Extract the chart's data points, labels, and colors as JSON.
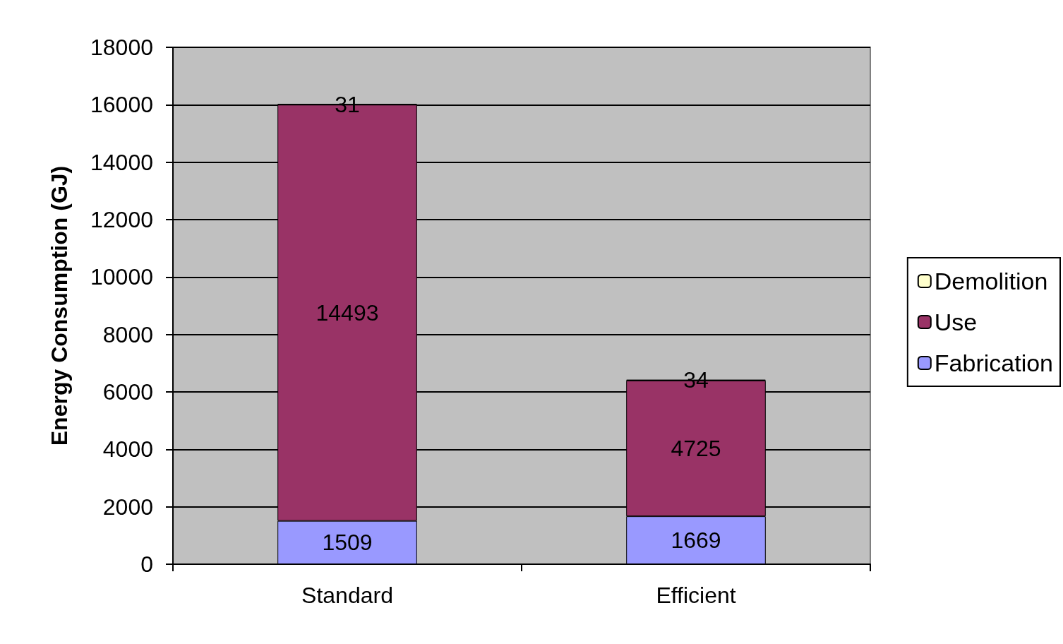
{
  "chart_data": {
    "type": "bar",
    "stacked": true,
    "ylabel": "Energy Consumption (GJ)",
    "categories": [
      "Standard",
      "Efficient"
    ],
    "series": [
      {
        "name": "Fabrication",
        "color": "#9999ff",
        "values": [
          1509,
          1669
        ]
      },
      {
        "name": "Use",
        "color": "#993366",
        "values": [
          14493,
          4725
        ]
      },
      {
        "name": "Demolition",
        "color": "#ffffcc",
        "values": [
          31,
          34
        ]
      }
    ],
    "ylim": [
      0,
      18000
    ],
    "yticks": [
      0,
      2000,
      4000,
      6000,
      8000,
      10000,
      12000,
      14000,
      16000,
      18000
    ],
    "grid": "y",
    "legend": "right",
    "data_labels": true
  }
}
